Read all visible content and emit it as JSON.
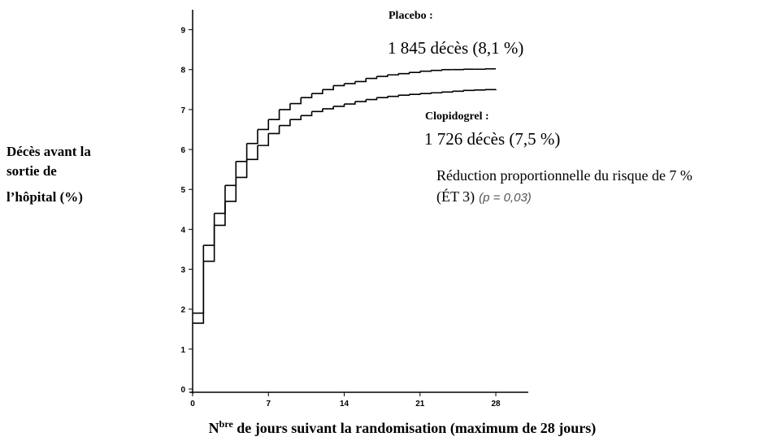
{
  "chart_data": {
    "type": "step",
    "y_label_lines": [
      "Décès avant la",
      "sortie de",
      "l’hôpital (%)"
    ],
    "x_label": {
      "text": "N",
      "sup": "bre",
      "rest": " de jours suivant la randomisation (maximum de 28 jours)"
    },
    "annotations": {
      "placebo_count": "1 845 décès (8,1 %)",
      "clopidogrel_count": "1 726 décès (7,5 %)",
      "reduction": "Réduction proportionnelle du risque de 7 %",
      "se": "(ÉT 3)",
      "p": "(p = 0,03)"
    },
    "x": [
      0,
      1,
      2,
      3,
      4,
      5,
      6,
      7,
      8,
      9,
      10,
      11,
      12,
      13,
      14,
      15,
      16,
      17,
      18,
      19,
      20,
      21,
      22,
      23,
      24,
      25,
      26,
      27,
      28
    ],
    "series": [
      {
        "name": "Placebo :",
        "color": "#000000",
        "values": [
          1.9,
          3.6,
          4.4,
          5.1,
          5.7,
          6.15,
          6.5,
          6.75,
          7.0,
          7.15,
          7.3,
          7.4,
          7.5,
          7.6,
          7.65,
          7.7,
          7.78,
          7.83,
          7.87,
          7.9,
          7.93,
          7.96,
          7.98,
          8.0,
          8.0,
          8.01,
          8.01,
          8.02,
          8.02
        ]
      },
      {
        "name": "Clopidogrel :",
        "color": "#000000",
        "values": [
          1.65,
          3.2,
          4.1,
          4.7,
          5.3,
          5.75,
          6.1,
          6.4,
          6.6,
          6.75,
          6.85,
          6.95,
          7.02,
          7.08,
          7.14,
          7.2,
          7.25,
          7.3,
          7.33,
          7.36,
          7.38,
          7.4,
          7.42,
          7.44,
          7.46,
          7.48,
          7.49,
          7.5,
          7.51
        ]
      }
    ],
    "xlim": [
      0,
      31
    ],
    "ylim": [
      0,
      9.5
    ],
    "xticks": [
      0,
      7,
      14,
      21,
      28
    ],
    "yticks": [
      0,
      1,
      2,
      3,
      4,
      5,
      6,
      7,
      8,
      9
    ]
  }
}
